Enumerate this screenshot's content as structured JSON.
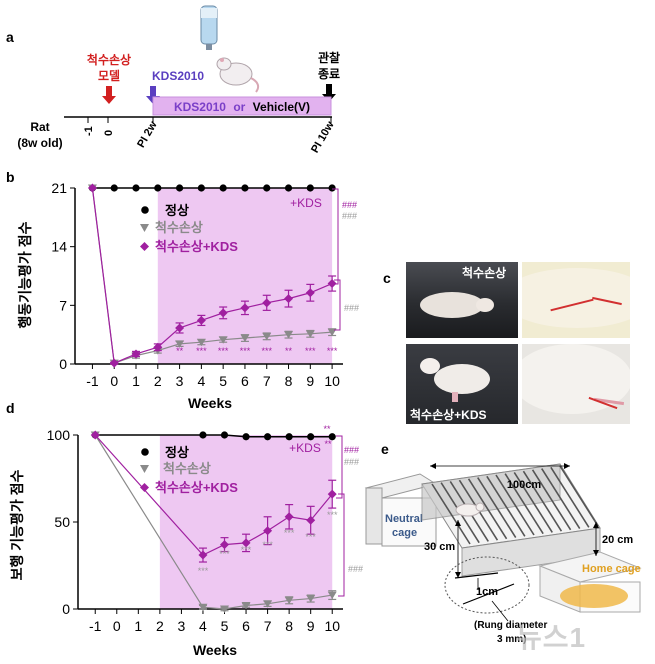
{
  "panel_a": {
    "label": "a",
    "injury_label_1": "척수손상",
    "injury_label_2": "모델",
    "kds_label": "KDS2010",
    "treatment_prefix": "KDS2010",
    "treatment_or": "or",
    "treatment_suffix": "Vehicle(V)",
    "obs_label_1": "관찰",
    "obs_label_2": "종료",
    "rat_label_1": "Rat",
    "rat_label_2": "(8w old)",
    "tick_m1": "-1",
    "tick_0": "0",
    "tick_pi2": "PI 2w",
    "tick_pi10": "PI 10w"
  },
  "panel_b": {
    "label": "b",
    "ylabel": "행동기능평가 점수",
    "xlabel": "Weeks",
    "kds_tag": "+KDS",
    "sig_top": "###",
    "sig_mid": "###",
    "sig_low": "###",
    "star_row": [
      "**",
      "***",
      "***",
      "***",
      "***",
      "**",
      "***",
      "***"
    ],
    "legend": [
      "정상",
      "척수손상",
      "척수손상+KDS"
    ]
  },
  "panel_c": {
    "label": "c",
    "caption_top": "척수손상",
    "caption_bottom": "척수손상+KDS"
  },
  "panel_d": {
    "label": "d",
    "ylabel": "보행 기능평가 점수",
    "xlabel": "Weeks",
    "kds_tag": "+KDS",
    "top_stars": "**",
    "top_stars2": "**",
    "sig_top": "###",
    "sig_mid": "###",
    "sig_low": "###",
    "star_labels": [
      "***",
      "***",
      "***",
      "***",
      "***",
      "***",
      "***"
    ],
    "legend": [
      "정상",
      "척수손상",
      "척수손상+KDS"
    ]
  },
  "panel_e": {
    "label": "e",
    "neutral_cage_1": "Neutral",
    "neutral_cage_2": "cage",
    "home_cage": "Home cage",
    "length": "100cm",
    "height": "20 cm",
    "depth": "30 cm",
    "rung_gap": "1cm",
    "rung_diameter_1": "(Rung diameter",
    "rung_diameter_2": "3 mm)"
  },
  "watermark": "뉴스1",
  "colors": {
    "kds": "#a020a0",
    "injury": "#8a8a8a",
    "normal": "#000000",
    "shade": "#eec8f2",
    "injury_arrow": "#d22020",
    "kds_arrow": "#5a3fc0",
    "sig_kds": "#a020a0",
    "sig_grey": "#9a9a9a"
  },
  "chart_data": [
    {
      "type": "line",
      "panel": "b",
      "ylabel": "행동기능평가 점수",
      "xlabel": "Weeks",
      "x": [
        -1,
        0,
        1,
        2,
        3,
        4,
        5,
        6,
        7,
        8,
        9,
        10
      ],
      "xlim": [
        -1.8,
        10.5
      ],
      "ylim": [
        0,
        21
      ],
      "yticks": [
        0,
        7,
        14,
        21
      ],
      "shade_x": [
        2,
        10
      ],
      "series": [
        {
          "name": "정상",
          "values": [
            21,
            21,
            21,
            21,
            21,
            21,
            21,
            21,
            21,
            21,
            21,
            21
          ]
        },
        {
          "name": "척수손상",
          "values": [
            21,
            0.1,
            1.0,
            1.6,
            2.4,
            2.6,
            2.9,
            3.1,
            3.3,
            3.5,
            3.6,
            3.8
          ],
          "errors": [
            0,
            0.1,
            0.3,
            0.3,
            0.3,
            0.3,
            0.3,
            0.4,
            0.4,
            0.4,
            0.4,
            0.4
          ]
        },
        {
          "name": "척수손상+KDS",
          "values": [
            21,
            0.1,
            1.2,
            2.0,
            4.3,
            5.2,
            6.1,
            6.7,
            7.3,
            7.8,
            8.5,
            9.6
          ],
          "errors": [
            0,
            0.1,
            0.3,
            0.4,
            0.6,
            0.6,
            0.7,
            0.8,
            0.9,
            1.0,
            1.0,
            0.9
          ]
        }
      ]
    },
    {
      "type": "line",
      "panel": "d",
      "ylabel": "보행 기능평가 점수",
      "xlabel": "Weeks",
      "x": [
        -1,
        0,
        1,
        2,
        3,
        4,
        5,
        6,
        7,
        8,
        9,
        10
      ],
      "xlim": [
        -1.8,
        10.5
      ],
      "ylim": [
        0,
        100
      ],
      "yticks": [
        0,
        50,
        100
      ],
      "shade_x": [
        2,
        10
      ],
      "series": [
        {
          "name": "정상",
          "x": [
            -1,
            4,
            5,
            6,
            7,
            8,
            9,
            10
          ],
          "values": [
            100,
            100,
            100,
            99,
            99,
            99,
            99,
            99
          ]
        },
        {
          "name": "척수손상",
          "x": [
            -1,
            4,
            5,
            6,
            7,
            8,
            9,
            10
          ],
          "values": [
            100,
            1,
            0,
            2,
            3,
            5,
            6,
            8
          ],
          "errors": [
            0,
            1,
            1,
            1,
            1.5,
            2,
            2,
            2.5
          ]
        },
        {
          "name": "척수손상+KDS",
          "x": [
            -1,
            4,
            5,
            6,
            7,
            8,
            9,
            10
          ],
          "values": [
            100,
            31,
            37,
            38,
            45,
            53,
            51,
            66
          ],
          "errors": [
            0,
            4,
            4,
            5,
            8,
            7,
            8,
            8
          ]
        }
      ]
    }
  ]
}
